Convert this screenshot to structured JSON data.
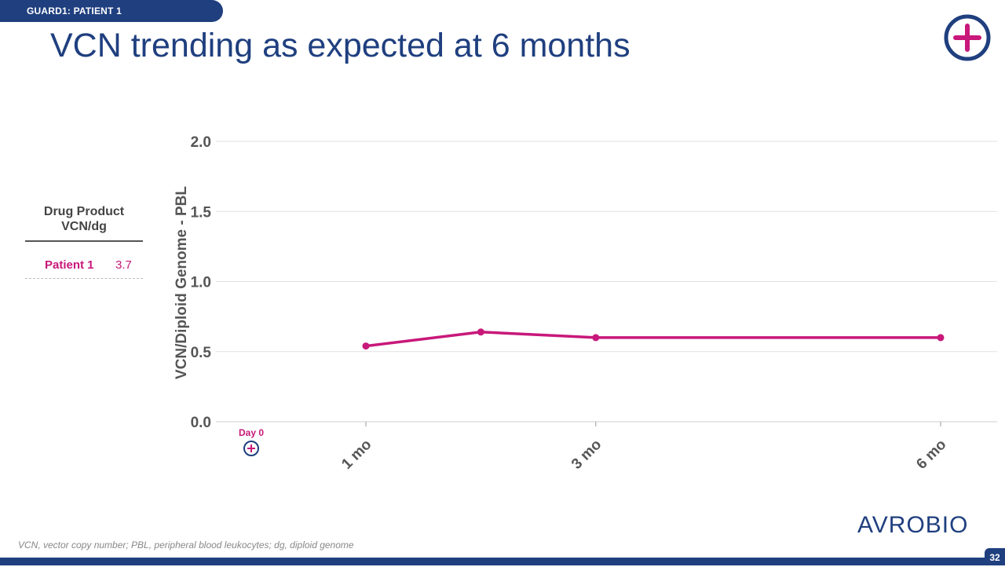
{
  "header": {
    "section_tag": "GUARD1: PATIENT 1",
    "title": "VCN trending as expected at 6 months"
  },
  "drug_product_table": {
    "header": "Drug Product VCN/dg",
    "rows": [
      {
        "patient": "Patient 1",
        "value": "3.7"
      }
    ]
  },
  "chart_data": {
    "type": "line",
    "ylabel": "VCN/Diploid Genome - PBL",
    "ylim": [
      0,
      2.0
    ],
    "y_ticks": [
      "0.0",
      "0.5",
      "1.0",
      "1.5",
      "2.0"
    ],
    "x_ticks": [
      "1 mo",
      "3 mo",
      "6 mo"
    ],
    "day0_marker_label": "Day 0",
    "grid": true,
    "line_color": "#c8187a",
    "series": [
      {
        "x_months": [
          1,
          2,
          3,
          6
        ],
        "values": [
          0.54,
          0.64,
          0.6,
          0.6
        ]
      }
    ]
  },
  "footer": {
    "footnote": "VCN, vector copy number; PBL, peripheral blood leukocytes; dg, diploid genome",
    "page_number": "32",
    "logo_text": "AVROBIO"
  },
  "colors": {
    "brand_navy": "#1f3f7f",
    "accent_magenta": "#c8187a"
  }
}
